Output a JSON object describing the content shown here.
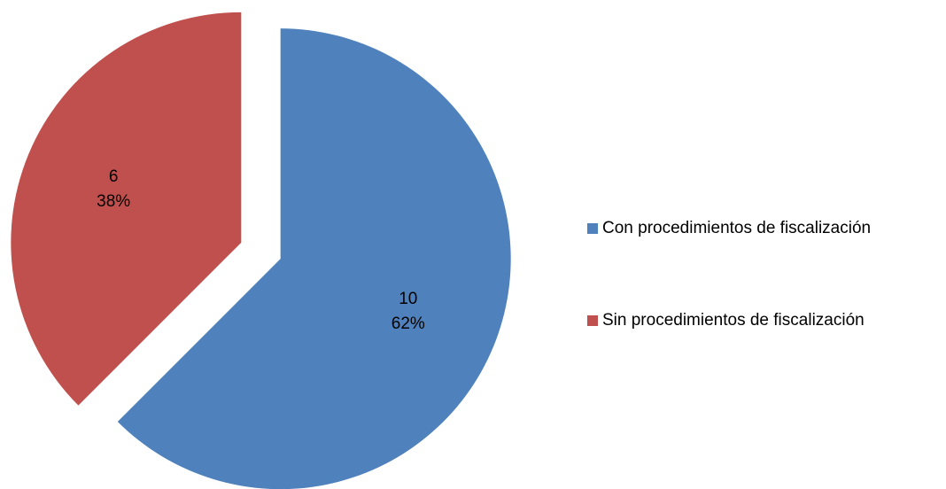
{
  "chart_data": {
    "type": "pie",
    "categories": [
      "Con procedimientos de fiscalización",
      "Sin procedimientos de fiscalización"
    ],
    "values": [
      10,
      6
    ],
    "percent_labels": [
      "62%",
      "38%"
    ],
    "colors": [
      "#4f81bd",
      "#c0504d"
    ],
    "legend": "right"
  }
}
